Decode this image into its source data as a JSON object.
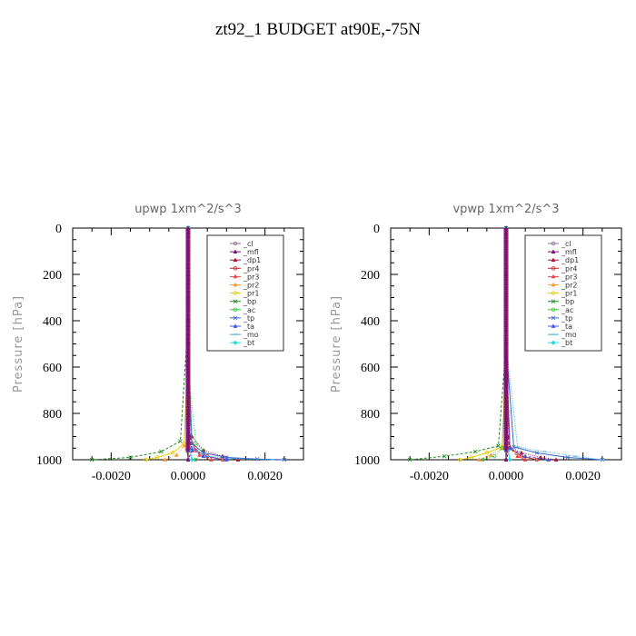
{
  "page": {
    "title": "zt92_1  BUDGET at90E,-75N"
  },
  "chart_data": [
    {
      "type": "line",
      "title": "upwp   1xm^2/s^3",
      "ylabel": "Pressure [hPa]",
      "xlabel": "",
      "xlim": [
        -0.003,
        0.003
      ],
      "ylim": [
        1000,
        0
      ],
      "yticks": [
        0,
        200,
        400,
        600,
        800,
        1000
      ],
      "xticks": [
        -0.002,
        0,
        0.002
      ],
      "xtick_labels": [
        "-0.0020",
        "0.0000",
        "0.0020"
      ],
      "legend_position": "top-right",
      "series": [
        {
          "name": "_cl",
          "color": "#8a6d8a",
          "marker": "circle",
          "x": [
            0,
            0,
            0,
            5e-05,
            -3e-05,
            0
          ],
          "y": [
            0,
            300,
            600,
            900,
            960,
            1000
          ]
        },
        {
          "name": "_mfl",
          "color": "#7a0f7a",
          "marker": "triangle",
          "x": [
            0,
            0,
            0,
            0,
            5e-05,
            0.0001,
            0
          ],
          "y": [
            0,
            200,
            400,
            700,
            900,
            960,
            1000
          ]
        },
        {
          "name": "_dp1",
          "color": "#b0103a",
          "marker": "triangle",
          "x": [
            0,
            0,
            0,
            0.0001,
            0.0004,
            0.0009,
            0.0013
          ],
          "y": [
            0,
            300,
            600,
            900,
            960,
            985,
            1000
          ]
        },
        {
          "name": "_pr4",
          "color": "#cc2222",
          "marker": "circle",
          "x": [
            0,
            0,
            5e-05,
            0.0002,
            0.0005,
            0.0009
          ],
          "y": [
            0,
            400,
            900,
            960,
            985,
            1000
          ]
        },
        {
          "name": "_pr3",
          "color": "#ee4444",
          "marker": "triangle",
          "x": [
            0,
            0,
            0.0001,
            0.0003,
            0.0006
          ],
          "y": [
            0,
            500,
            930,
            980,
            1000
          ]
        },
        {
          "name": "_pr2",
          "color": "#ff9933",
          "marker": "triangle",
          "x": [
            0,
            0,
            -0.0001,
            -0.0003,
            -0.0006
          ],
          "y": [
            0,
            500,
            940,
            980,
            1000
          ]
        },
        {
          "name": "_pr1",
          "color": "#e8c800",
          "marker": "circle",
          "x": [
            0,
            0,
            -0.0001,
            -0.0004,
            -0.0008,
            -0.0011
          ],
          "y": [
            0,
            500,
            930,
            970,
            990,
            1000
          ]
        },
        {
          "name": "_bp",
          "color": "#228b22",
          "marker": "x",
          "x": [
            0,
            0,
            -0.0002,
            -0.0007,
            -0.0015,
            -0.0025
          ],
          "y": [
            0,
            400,
            920,
            965,
            990,
            1000
          ]
        },
        {
          "name": "_ac",
          "color": "#33cc33",
          "marker": "circle",
          "x": [
            0,
            0,
            0.0002,
            0.0004,
            0.0002
          ],
          "y": [
            0,
            600,
            930,
            960,
            1000
          ]
        },
        {
          "name": "_tp",
          "color": "#3366cc",
          "marker": "x",
          "x": [
            0,
            0,
            0.0001,
            0.0004,
            0.001,
            0.0018,
            0.0025
          ],
          "y": [
            0,
            500,
            930,
            970,
            990,
            997,
            1000
          ]
        },
        {
          "name": "_ta",
          "color": "#4455ee",
          "marker": "triangle",
          "x": [
            0,
            0,
            0.0001,
            0.0004,
            0.001
          ],
          "y": [
            0,
            500,
            950,
            985,
            1000
          ]
        },
        {
          "name": "_mo",
          "color": "#33aadd",
          "marker": "line",
          "x": [
            0,
            0,
            0.0001,
            0.0005,
            0.0012,
            0.0022
          ],
          "y": [
            0,
            500,
            950,
            985,
            996,
            1000
          ]
        },
        {
          "name": "_bt",
          "color": "#22dddd",
          "marker": "diamond",
          "x": [
            0,
            0,
            5e-05,
            0.0001
          ],
          "y": [
            0,
            600,
            960,
            1000
          ]
        }
      ]
    },
    {
      "type": "line",
      "title": "vpwp   1xm^2/s^3",
      "ylabel": "Pressure [hPa]",
      "xlabel": "",
      "xlim": [
        -0.003,
        0.003
      ],
      "ylim": [
        1000,
        0
      ],
      "yticks": [
        0,
        200,
        400,
        600,
        800,
        1000
      ],
      "xticks": [
        -0.002,
        0,
        0.002
      ],
      "xtick_labels": [
        "-0.0020",
        "0.0000",
        "0.0020"
      ],
      "legend_position": "top-right",
      "series": [
        {
          "name": "_cl",
          "color": "#8a6d8a",
          "marker": "circle",
          "x": [
            0,
            0,
            0,
            5e-05,
            0
          ],
          "y": [
            0,
            300,
            700,
            940,
            1000
          ]
        },
        {
          "name": "_mfl",
          "color": "#7a0f7a",
          "marker": "triangle",
          "x": [
            0,
            0,
            0,
            5e-05,
            0.0001,
            0
          ],
          "y": [
            0,
            200,
            500,
            900,
            950,
            1000
          ]
        },
        {
          "name": "_dp1",
          "color": "#b0103a",
          "marker": "triangle",
          "x": [
            0,
            0,
            0.0001,
            0.0004,
            0.0009,
            0.0013
          ],
          "y": [
            0,
            600,
            945,
            970,
            990,
            1000
          ]
        },
        {
          "name": "_pr4",
          "color": "#cc2222",
          "marker": "circle",
          "x": [
            0,
            0,
            0.0001,
            0.0004,
            0.0008
          ],
          "y": [
            0,
            500,
            950,
            985,
            1000
          ]
        },
        {
          "name": "_pr3",
          "color": "#ee4444",
          "marker": "triangle",
          "x": [
            0,
            0,
            0.0001,
            0.0003,
            0.0005
          ],
          "y": [
            0,
            500,
            950,
            985,
            1000
          ]
        },
        {
          "name": "_pr2",
          "color": "#ff9933",
          "marker": "triangle",
          "x": [
            0,
            0,
            -0.0001,
            -0.0004,
            -0.0007
          ],
          "y": [
            0,
            500,
            950,
            980,
            1000
          ]
        },
        {
          "name": "_pr1",
          "color": "#e8c800",
          "marker": "circle",
          "x": [
            0,
            0,
            -0.0001,
            -0.0005,
            -0.0009,
            -0.0012
          ],
          "y": [
            0,
            500,
            945,
            970,
            990,
            1000
          ]
        },
        {
          "name": "_bp",
          "color": "#228b22",
          "marker": "x",
          "x": [
            0,
            0,
            -0.0002,
            -0.0008,
            -0.0016,
            -0.0025
          ],
          "y": [
            0,
            500,
            940,
            965,
            985,
            1000
          ]
        },
        {
          "name": "_ac",
          "color": "#33cc33",
          "marker": "circle",
          "x": [
            0,
            0,
            -0.0001,
            -0.0003,
            -0.0006
          ],
          "y": [
            0,
            600,
            950,
            985,
            1000
          ]
        },
        {
          "name": "_tp",
          "color": "#3366cc",
          "marker": "x",
          "x": [
            0,
            0,
            0.0002,
            0.0008,
            0.0016,
            0.0025
          ],
          "y": [
            0,
            500,
            945,
            970,
            990,
            1000
          ]
        },
        {
          "name": "_ta",
          "color": "#4455ee",
          "marker": "triangle",
          "x": [
            0,
            0,
            0.0001,
            0.0005,
            0.0011
          ],
          "y": [
            0,
            500,
            950,
            985,
            1000
          ]
        },
        {
          "name": "_mo",
          "color": "#33aadd",
          "marker": "line",
          "x": [
            0,
            0,
            0.0003,
            0.001,
            0.0018,
            0.0025
          ],
          "y": [
            0,
            500,
            945,
            965,
            985,
            1000
          ]
        },
        {
          "name": "_bt",
          "color": "#22dddd",
          "marker": "diamond",
          "x": [
            0,
            0,
            5e-05,
            0.0001
          ],
          "y": [
            0,
            600,
            960,
            1000
          ]
        }
      ]
    }
  ]
}
